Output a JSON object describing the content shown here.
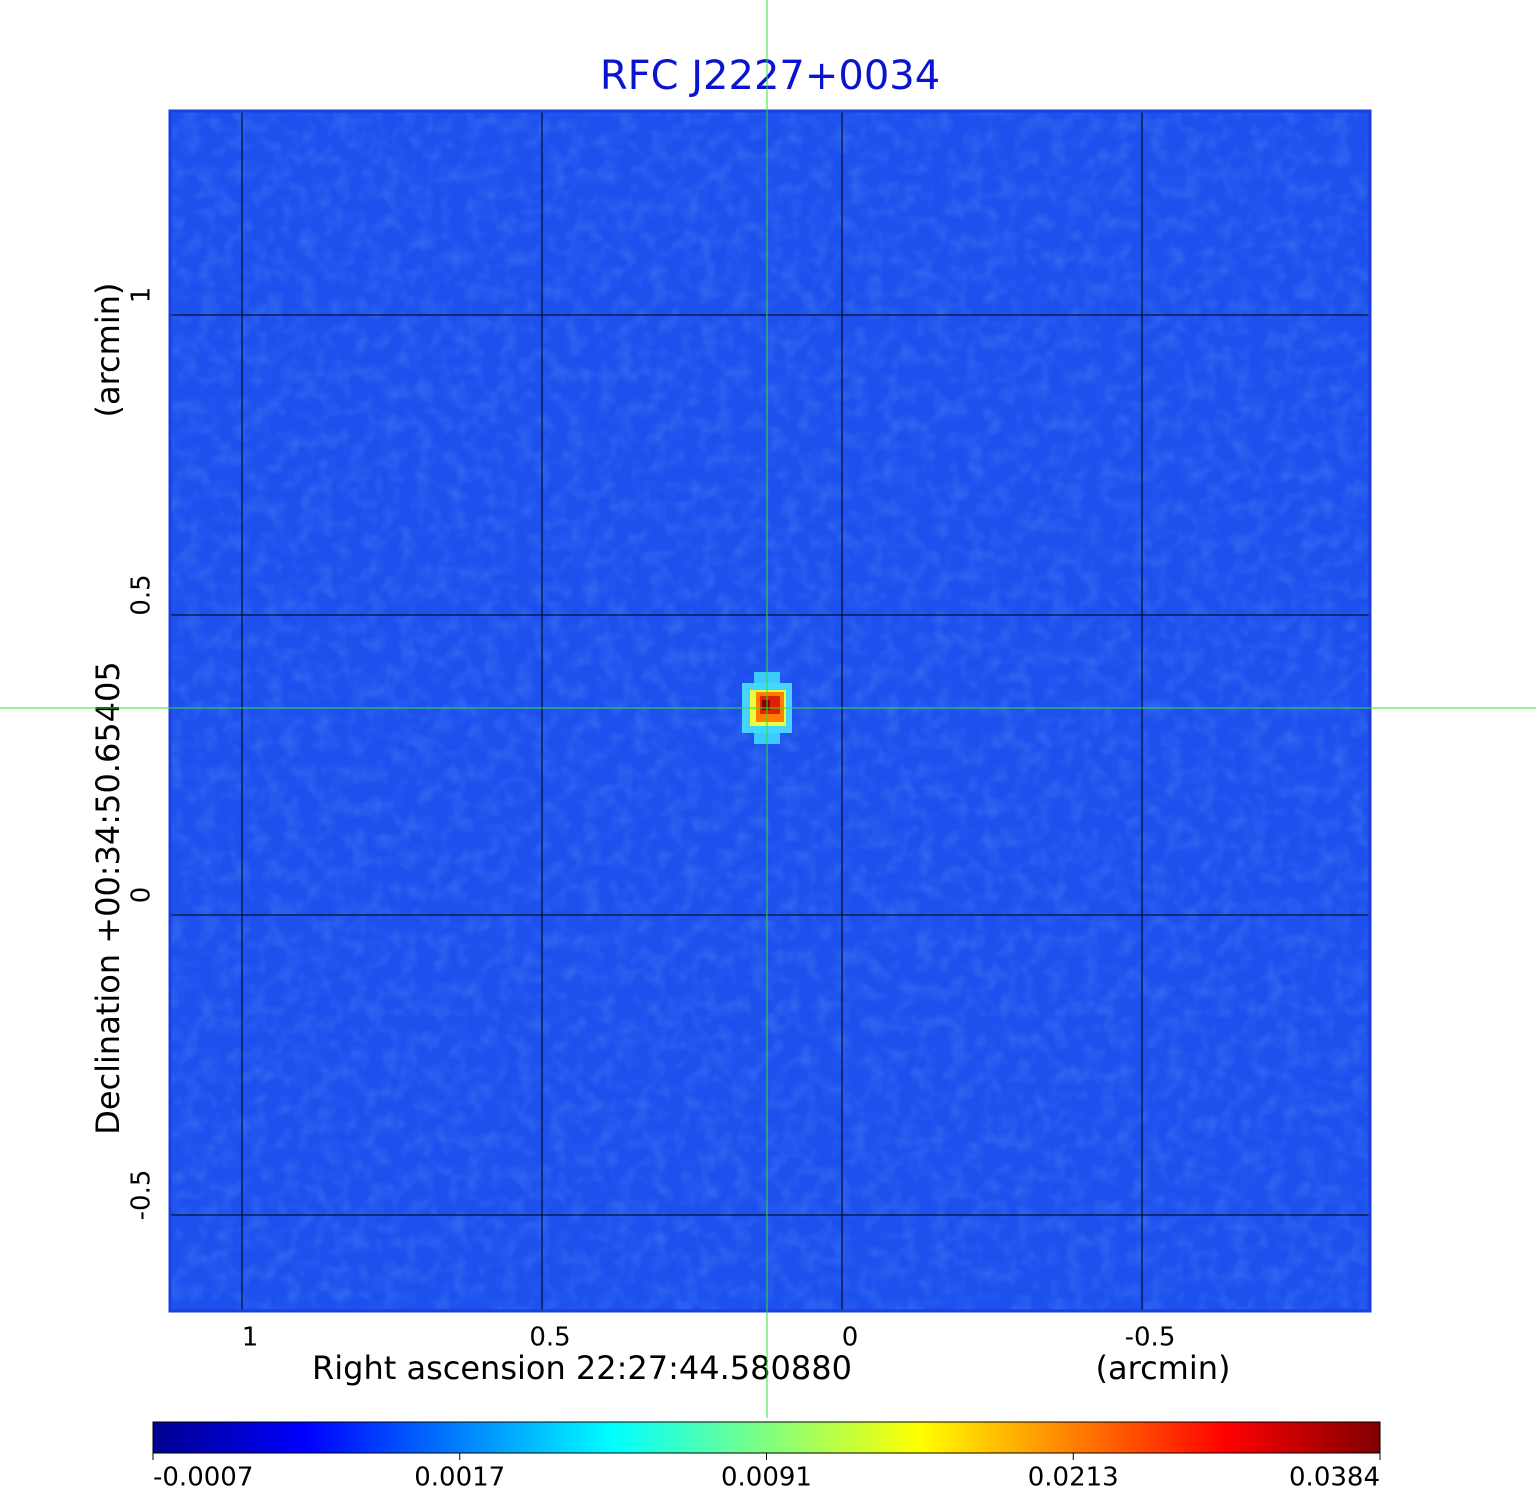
{
  "chart_data": {
    "type": "image",
    "title": "RFC J2227+0034",
    "x_label": "Right ascension  22:27:44.580880",
    "x_unit": "(arcmin)",
    "y_label": "Declination  +00:34:50.65405",
    "y_unit": "(arcmin)",
    "xlim": [
      1.12,
      -0.88
    ],
    "ylim": [
      -0.66,
      1.34
    ],
    "xticks": [
      1.0,
      0.5,
      0.0,
      -0.5
    ],
    "yticks": [
      1.0,
      0.5,
      0.0,
      -0.5
    ],
    "grid": true,
    "marker": {
      "x": 0.125,
      "y": 0.345
    },
    "colorbar": {
      "ticks": [
        -0.0007,
        0.0017,
        0.0091,
        0.0213,
        0.0384
      ],
      "colors": [
        "#00008f",
        "#0000ff",
        "#0080ff",
        "#00ffff",
        "#80ff80",
        "#ffff00",
        "#ff8000",
        "#ff0000",
        "#800000"
      ]
    }
  }
}
